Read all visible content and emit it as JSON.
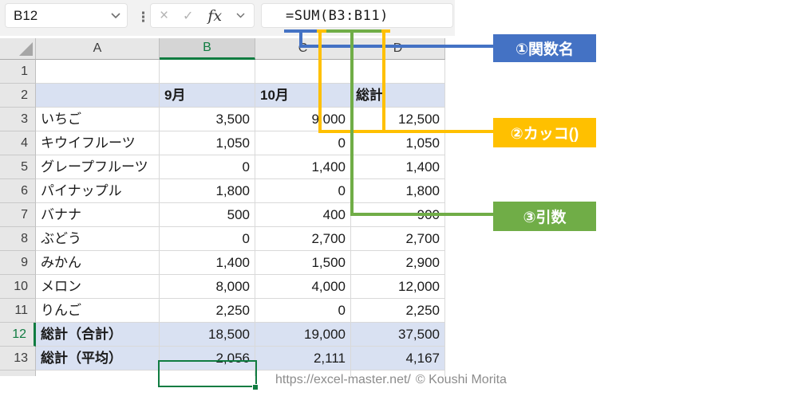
{
  "toolbar": {
    "name_box": "B12",
    "formula": "=SUM(B3:B11)",
    "icons": {
      "dots": "⋮",
      "cancel": "×",
      "enter": "✓",
      "fx": "fx"
    }
  },
  "sheet": {
    "columns": [
      "A",
      "B",
      "C",
      "D"
    ],
    "selected_column": "B",
    "selected_row": "12",
    "selected_cell": "B12",
    "rows": [
      {
        "n": "1",
        "a": "",
        "b": "",
        "c": "",
        "d": ""
      },
      {
        "n": "2",
        "a": "",
        "b": "9月",
        "c": "10月",
        "d": "総計",
        "type": "header"
      },
      {
        "n": "3",
        "a": "いちご",
        "b": "3,500",
        "c": "9,000",
        "d": "12,500"
      },
      {
        "n": "4",
        "a": "キウイフルーツ",
        "b": "1,050",
        "c": "0",
        "d": "1,050"
      },
      {
        "n": "5",
        "a": "グレープフルーツ",
        "b": "0",
        "c": "1,400",
        "d": "1,400"
      },
      {
        "n": "6",
        "a": "パイナップル",
        "b": "1,800",
        "c": "0",
        "d": "1,800"
      },
      {
        "n": "7",
        "a": "バナナ",
        "b": "500",
        "c": "400",
        "d": "900"
      },
      {
        "n": "8",
        "a": "ぶどう",
        "b": "0",
        "c": "2,700",
        "d": "2,700"
      },
      {
        "n": "9",
        "a": "みかん",
        "b": "1,400",
        "c": "1,500",
        "d": "2,900"
      },
      {
        "n": "10",
        "a": "メロン",
        "b": "8,000",
        "c": "4,000",
        "d": "12,000"
      },
      {
        "n": "11",
        "a": "りんご",
        "b": "2,250",
        "c": "0",
        "d": "2,250"
      },
      {
        "n": "12",
        "a": "総計（合計）",
        "b": "18,500",
        "c": "19,000",
        "d": "37,500",
        "type": "total"
      },
      {
        "n": "13",
        "a": "総計（平均）",
        "b": "2,056",
        "c": "2,111",
        "d": "4,167",
        "type": "total"
      }
    ]
  },
  "annotations": [
    {
      "label": "①関数名",
      "color": "#4472C4",
      "target": "=SUM"
    },
    {
      "label": "②カッコ()",
      "color": "#FFC000",
      "target": "( )"
    },
    {
      "label": "③引数",
      "color": "#70AD47",
      "target": "B3:B11"
    }
  ],
  "colors": {
    "selection_green": "#107C41",
    "band_fill": "#D9E1F2",
    "accent_blue": "#4472C4",
    "accent_yellow": "#FFC000",
    "accent_green": "#70AD47"
  },
  "footer": {
    "url": "https://excel-master.net/",
    "credit": "© Koushi Morita"
  }
}
